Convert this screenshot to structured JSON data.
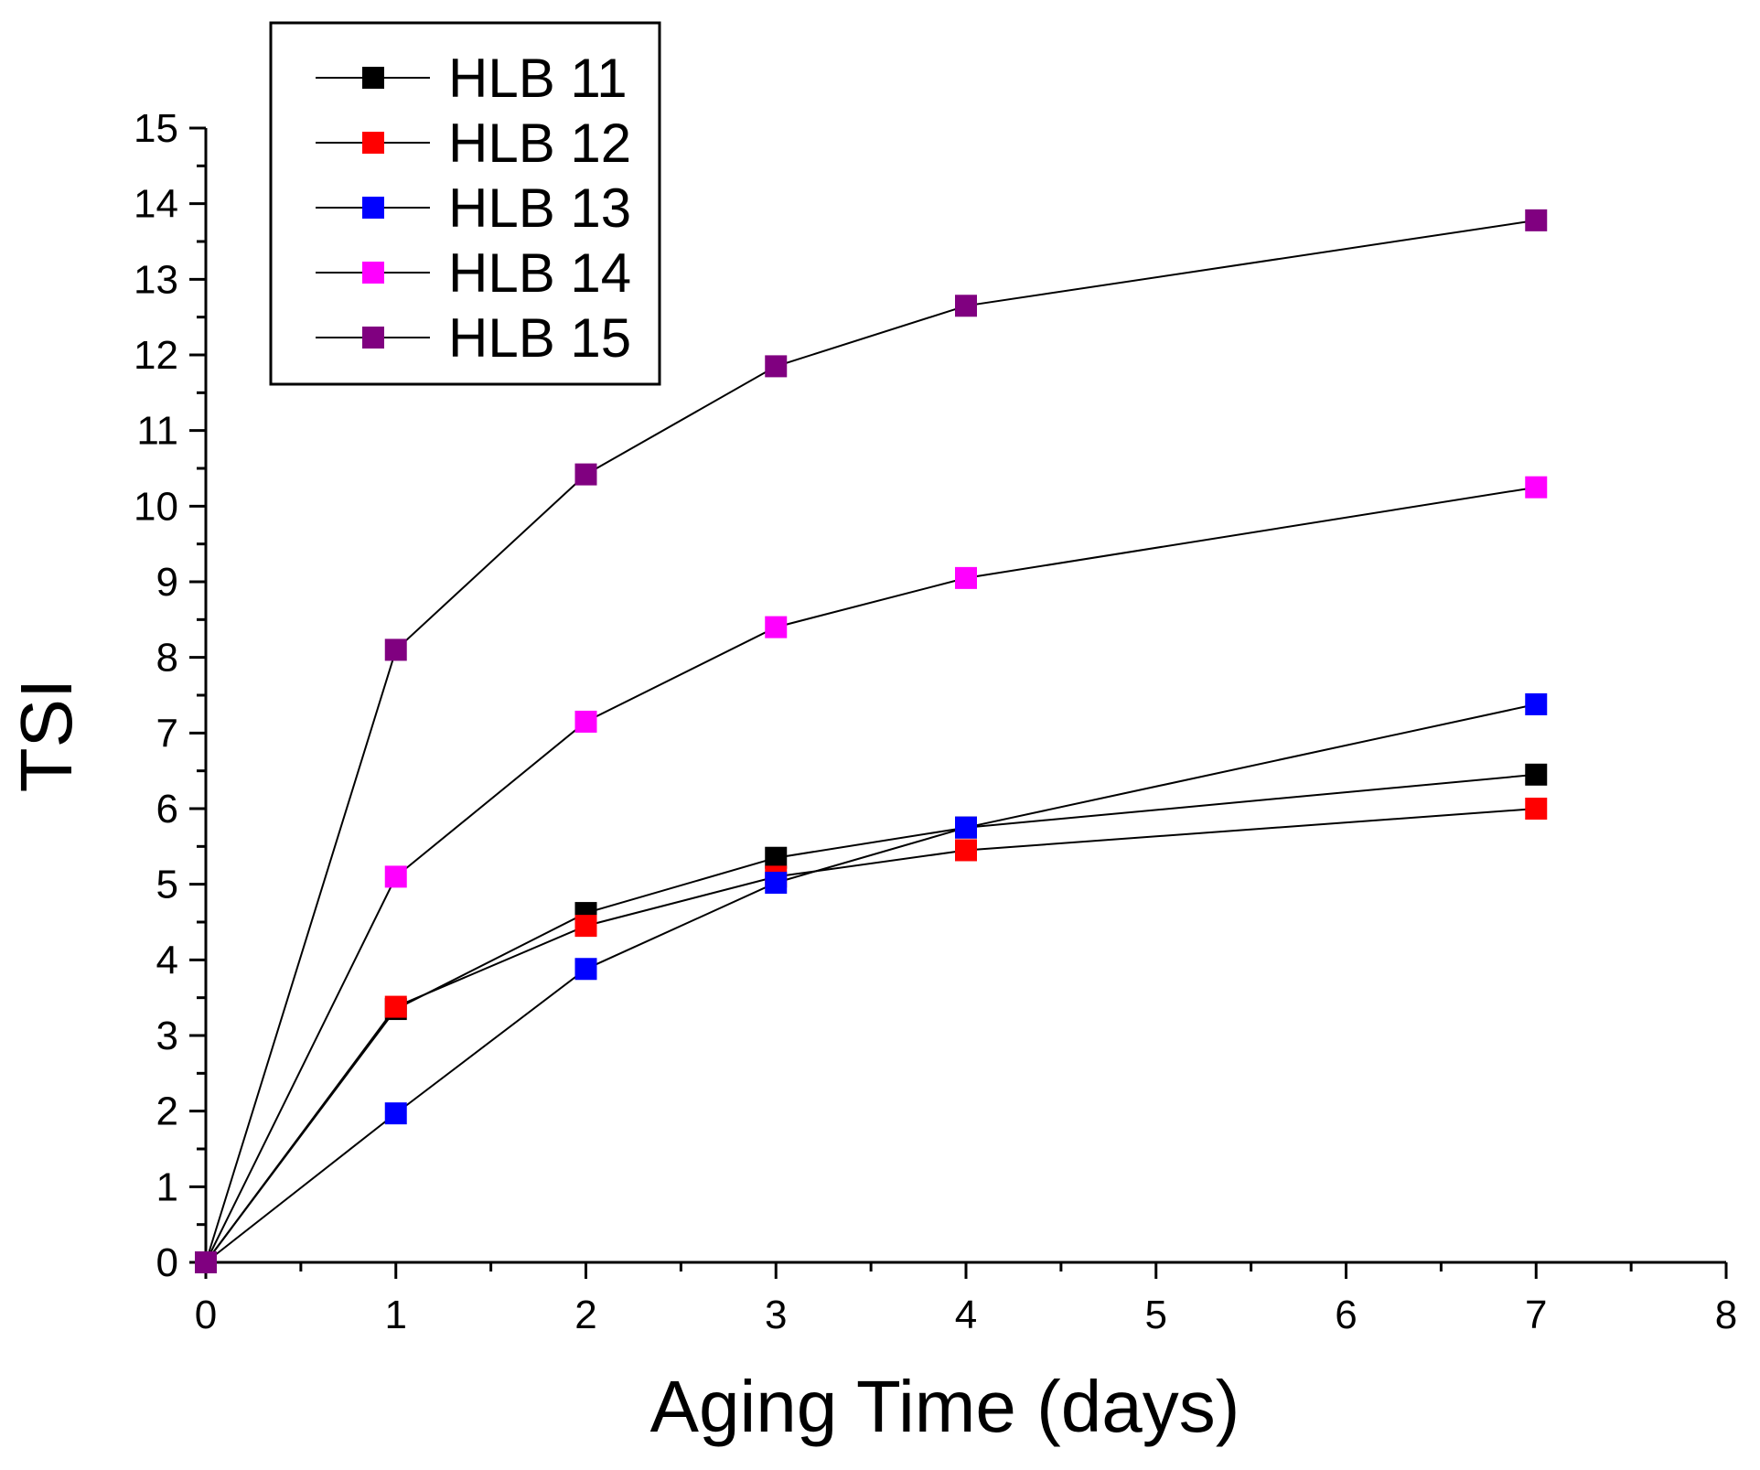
{
  "chart_data": {
    "type": "line",
    "title": "",
    "xlabel": "Aging Time (days)",
    "ylabel": "TSI",
    "xlim": [
      0,
      8
    ],
    "ylim": [
      0,
      15
    ],
    "x_ticks": [
      "0",
      "1",
      "2",
      "3",
      "4",
      "5",
      "6",
      "7",
      "8"
    ],
    "y_ticks": [
      "0",
      "1",
      "2",
      "3",
      "4",
      "5",
      "6",
      "7",
      "8",
      "9",
      "10",
      "11",
      "12",
      "13",
      "14",
      "15"
    ],
    "grid": false,
    "legend_position": "top-left",
    "x": [
      0,
      1,
      2,
      3,
      4,
      7
    ],
    "series": [
      {
        "name": "HLB 11",
        "color": "#000000",
        "values": [
          0,
          3.35,
          4.62,
          5.35,
          5.75,
          6.45
        ]
      },
      {
        "name": "HLB 12",
        "color": "#ff0000",
        "values": [
          0,
          3.38,
          4.45,
          5.1,
          5.45,
          6.0
        ]
      },
      {
        "name": "HLB 13",
        "color": "#0000ff",
        "values": [
          0,
          1.97,
          3.88,
          5.02,
          5.75,
          7.38
        ]
      },
      {
        "name": "HLB 14",
        "color": "#ff00ff",
        "values": [
          0,
          5.1,
          7.15,
          8.4,
          9.05,
          10.25
        ]
      },
      {
        "name": "HLB 15",
        "color": "#800080",
        "values": [
          0,
          8.1,
          10.42,
          11.85,
          12.65,
          13.78
        ]
      }
    ]
  }
}
